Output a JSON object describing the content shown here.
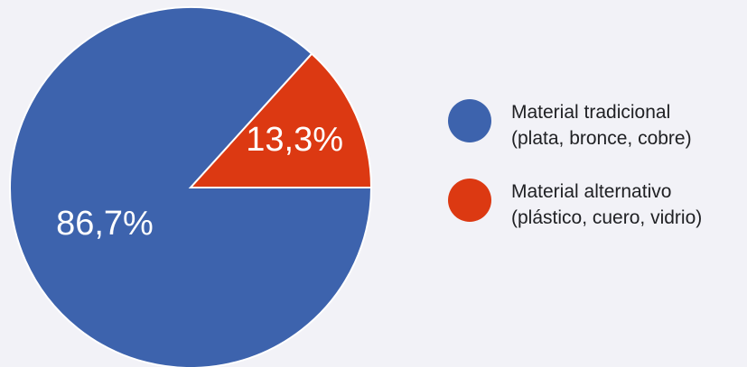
{
  "chart_data": {
    "type": "pie",
    "title": "",
    "legend_position": "right",
    "slices": [
      {
        "label_line1": "Material tradicional",
        "label_line2": "(plata, bronce, cobre)",
        "value": 86.7,
        "value_label": "86,7%",
        "color": "#3d63ad"
      },
      {
        "label_line1": "Material alternativo",
        "label_line2": "(plástico, cuero, vidrio)",
        "value": 13.3,
        "value_label": "13,3%",
        "color": "#dc3912"
      }
    ]
  }
}
